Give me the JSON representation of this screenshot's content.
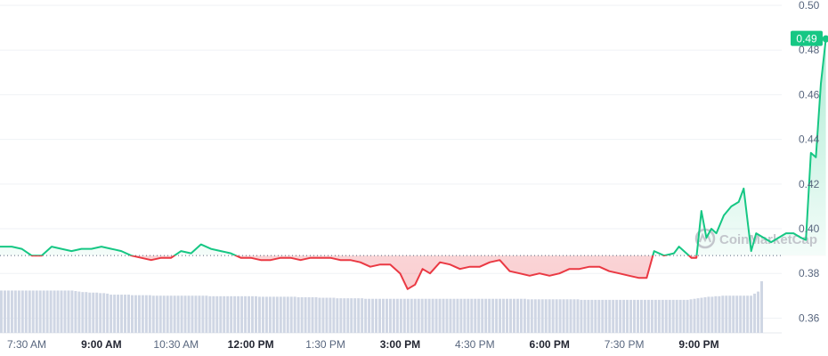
{
  "chart_data": {
    "type": "line",
    "watermark": "CoinMarketCap",
    "colors": {
      "up": "#16c784",
      "down": "#ea3943",
      "volume": "#cfd6e4",
      "grid": "#eff2f5",
      "baseline": "#58667e",
      "label_bg": "#16c784"
    },
    "baseline_price": 0.388,
    "current_price_label": "0.49",
    "current_price": 0.485,
    "ylim": [
      0.355,
      0.5
    ],
    "y_ticks": [
      {
        "value": 0.5,
        "label": "0.50"
      },
      {
        "value": 0.48,
        "label": "0.48"
      },
      {
        "value": 0.46,
        "label": "0.46"
      },
      {
        "value": 0.44,
        "label": "0.44"
      },
      {
        "value": 0.42,
        "label": "0.42"
      },
      {
        "value": 0.4,
        "label": "0.40"
      },
      {
        "value": 0.38,
        "label": "0.38"
      },
      {
        "value": 0.36,
        "label": "0.36"
      }
    ],
    "x_ticks": [
      {
        "label": "7:30 AM",
        "bold": false
      },
      {
        "label": "9:00 AM",
        "bold": true
      },
      {
        "label": "10:30 AM",
        "bold": false
      },
      {
        "label": "12:00 PM",
        "bold": true
      },
      {
        "label": "1:30 PM",
        "bold": false
      },
      {
        "label": "3:00 PM",
        "bold": true
      },
      {
        "label": "4:30 PM",
        "bold": false
      },
      {
        "label": "6:00 PM",
        "bold": true
      },
      {
        "label": "7:30 PM",
        "bold": false
      },
      {
        "label": "9:00 PM",
        "bold": true
      }
    ],
    "x_tick_hours": [
      7.5,
      9,
      10.5,
      12,
      13.5,
      15,
      16.5,
      18,
      19.5,
      21
    ],
    "x_range_hours": [
      6.96,
      22.6
    ],
    "price_series": [
      [
        6.96,
        0.392
      ],
      [
        7.2,
        0.392
      ],
      [
        7.4,
        0.391
      ],
      [
        7.6,
        0.388
      ],
      [
        7.8,
        0.388
      ],
      [
        8.0,
        0.392
      ],
      [
        8.2,
        0.391
      ],
      [
        8.4,
        0.39
      ],
      [
        8.6,
        0.391
      ],
      [
        8.8,
        0.391
      ],
      [
        9.0,
        0.392
      ],
      [
        9.2,
        0.391
      ],
      [
        9.4,
        0.39
      ],
      [
        9.6,
        0.388
      ],
      [
        9.8,
        0.387
      ],
      [
        10.0,
        0.386
      ],
      [
        10.2,
        0.387
      ],
      [
        10.4,
        0.387
      ],
      [
        10.6,
        0.39
      ],
      [
        10.8,
        0.389
      ],
      [
        11.0,
        0.393
      ],
      [
        11.2,
        0.391
      ],
      [
        11.4,
        0.39
      ],
      [
        11.6,
        0.389
      ],
      [
        11.8,
        0.387
      ],
      [
        12.0,
        0.387
      ],
      [
        12.2,
        0.386
      ],
      [
        12.4,
        0.386
      ],
      [
        12.6,
        0.387
      ],
      [
        12.8,
        0.387
      ],
      [
        13.0,
        0.386
      ],
      [
        13.2,
        0.387
      ],
      [
        13.4,
        0.387
      ],
      [
        13.6,
        0.387
      ],
      [
        13.8,
        0.386
      ],
      [
        14.0,
        0.386
      ],
      [
        14.2,
        0.385
      ],
      [
        14.4,
        0.383
      ],
      [
        14.6,
        0.384
      ],
      [
        14.8,
        0.384
      ],
      [
        15.0,
        0.38
      ],
      [
        15.15,
        0.373
      ],
      [
        15.3,
        0.375
      ],
      [
        15.45,
        0.382
      ],
      [
        15.6,
        0.38
      ],
      [
        15.8,
        0.385
      ],
      [
        16.0,
        0.384
      ],
      [
        16.2,
        0.382
      ],
      [
        16.4,
        0.383
      ],
      [
        16.6,
        0.383
      ],
      [
        16.8,
        0.385
      ],
      [
        17.0,
        0.386
      ],
      [
        17.2,
        0.381
      ],
      [
        17.4,
        0.38
      ],
      [
        17.6,
        0.379
      ],
      [
        17.8,
        0.38
      ],
      [
        18.0,
        0.379
      ],
      [
        18.2,
        0.38
      ],
      [
        18.4,
        0.382
      ],
      [
        18.6,
        0.382
      ],
      [
        18.8,
        0.383
      ],
      [
        19.0,
        0.383
      ],
      [
        19.2,
        0.381
      ],
      [
        19.4,
        0.38
      ],
      [
        19.6,
        0.379
      ],
      [
        19.8,
        0.378
      ],
      [
        19.95,
        0.378
      ],
      [
        20.1,
        0.39
      ],
      [
        20.3,
        0.388
      ],
      [
        20.5,
        0.389
      ],
      [
        20.6,
        0.392
      ],
      [
        20.75,
        0.389
      ],
      [
        20.85,
        0.387
      ],
      [
        20.95,
        0.387
      ],
      [
        21.05,
        0.408
      ],
      [
        21.15,
        0.396
      ],
      [
        21.25,
        0.4
      ],
      [
        21.35,
        0.398
      ],
      [
        21.5,
        0.406
      ],
      [
        21.65,
        0.41
      ],
      [
        21.8,
        0.412
      ],
      [
        21.9,
        0.418
      ],
      [
        22.05,
        0.39
      ],
      [
        22.15,
        0.398
      ],
      [
        22.3,
        0.396
      ],
      [
        22.45,
        0.394
      ],
      [
        22.6,
        0.396
      ],
      [
        22.75,
        0.398
      ],
      [
        22.9,
        0.398
      ],
      [
        23.05,
        0.396
      ],
      [
        23.15,
        0.395
      ],
      [
        23.25,
        0.434
      ],
      [
        23.35,
        0.432
      ],
      [
        23.45,
        0.465
      ],
      [
        23.55,
        0.485
      ]
    ],
    "volume_relative": [
      0.82,
      0.82,
      0.82,
      0.82,
      0.82,
      0.82,
      0.82,
      0.82,
      0.82,
      0.82,
      0.82,
      0.82,
      0.82,
      0.82,
      0.82,
      0.82,
      0.82,
      0.82,
      0.82,
      0.82,
      0.82,
      0.81,
      0.8,
      0.79,
      0.79,
      0.78,
      0.78,
      0.78,
      0.77,
      0.77,
      0.76,
      0.74,
      0.74,
      0.74,
      0.74,
      0.74,
      0.74,
      0.73,
      0.73,
      0.73,
      0.73,
      0.73,
      0.73,
      0.72,
      0.72,
      0.72,
      0.72,
      0.72,
      0.72,
      0.72,
      0.72,
      0.72,
      0.72,
      0.72,
      0.72,
      0.72,
      0.72,
      0.72,
      0.72,
      0.71,
      0.71,
      0.71,
      0.71,
      0.71,
      0.71,
      0.71,
      0.71,
      0.71,
      0.71,
      0.71,
      0.71,
      0.71,
      0.71,
      0.7,
      0.7,
      0.7,
      0.7,
      0.7,
      0.7,
      0.7,
      0.7,
      0.7,
      0.7,
      0.7,
      0.69,
      0.69,
      0.69,
      0.69,
      0.69,
      0.69,
      0.68,
      0.68,
      0.68,
      0.68,
      0.68,
      0.67,
      0.67,
      0.67,
      0.67,
      0.67,
      0.67,
      0.67,
      0.67,
      0.66,
      0.66,
      0.66,
      0.66,
      0.66,
      0.66,
      0.66,
      0.66,
      0.66,
      0.66,
      0.66,
      0.66,
      0.66,
      0.66,
      0.66,
      0.66,
      0.66,
      0.66,
      0.66,
      0.66,
      0.66,
      0.66,
      0.66,
      0.66,
      0.66,
      0.66,
      0.66,
      0.66,
      0.66,
      0.66,
      0.66,
      0.66,
      0.66,
      0.66,
      0.66,
      0.66,
      0.66,
      0.66,
      0.66,
      0.66,
      0.66,
      0.66,
      0.66,
      0.66,
      0.66,
      0.66,
      0.65,
      0.65,
      0.65,
      0.65,
      0.65,
      0.65,
      0.65,
      0.65,
      0.65,
      0.65,
      0.65,
      0.65,
      0.65,
      0.65,
      0.65,
      0.64,
      0.64,
      0.64,
      0.64,
      0.64,
      0.64,
      0.64,
      0.64,
      0.64,
      0.64,
      0.64,
      0.64,
      0.64,
      0.64,
      0.64,
      0.64,
      0.64,
      0.64,
      0.64,
      0.64,
      0.64,
      0.64,
      0.64,
      0.64,
      0.64,
      0.64,
      0.64,
      0.64,
      0.64,
      0.64,
      0.64,
      0.65,
      0.66,
      0.67,
      0.68,
      0.69,
      0.7,
      0.7,
      0.71,
      0.71,
      0.72,
      0.72,
      0.72,
      0.72,
      0.72,
      0.72,
      0.72,
      0.72,
      0.72,
      0.76,
      0.8,
      1.0
    ]
  }
}
